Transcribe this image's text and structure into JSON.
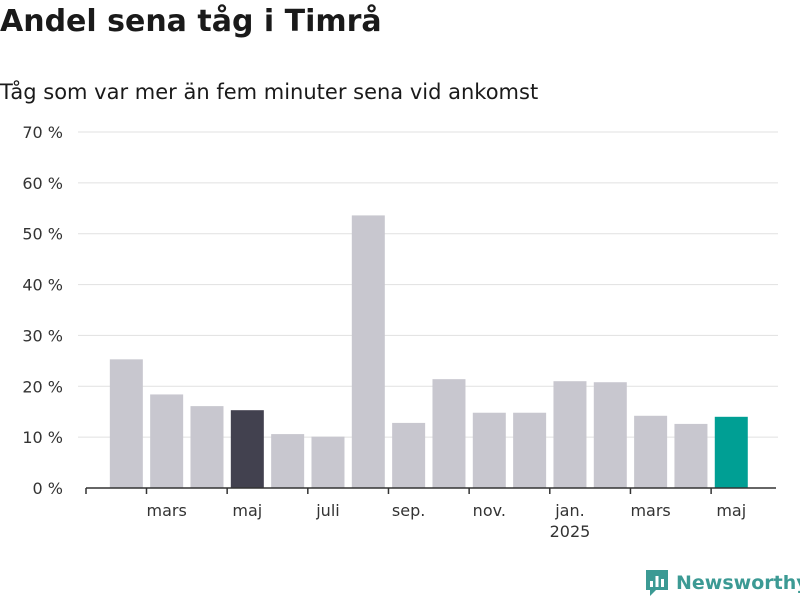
{
  "header": {
    "title": "Andel sena tåg i Timrå",
    "subtitle": "Tåg som var mer än fem minuter sena vid ankomst"
  },
  "brand": {
    "name": "Newsworthy",
    "icon": "newsworthy-logo-icon"
  },
  "colors": {
    "bar_default": "#c8c7cf",
    "bar_highlight_dark": "#42414f",
    "bar_highlight_teal": "#009f94",
    "grid": "#e1e1e1",
    "axis": "#333333",
    "brand": "#3c9a94"
  },
  "chart_data": {
    "type": "bar",
    "x": [
      "2024-02",
      "2024-03",
      "2024-04",
      "2024-05",
      "2024-06",
      "2024-07",
      "2024-08",
      "2024-09",
      "2024-10",
      "2024-11",
      "2024-12",
      "2025-01",
      "2025-02",
      "2025-03",
      "2025-04",
      "2025-05"
    ],
    "values": [
      25.3,
      18.4,
      16.1,
      15.3,
      10.6,
      10.1,
      53.6,
      12.8,
      21.4,
      14.8,
      14.8,
      21.0,
      20.8,
      14.2,
      12.6,
      14.0
    ],
    "highlight": {
      "2024-05": "dark",
      "2025-05": "teal"
    },
    "ylim": [
      0,
      70
    ],
    "yticks": [
      {
        "value": 0,
        "label": "0 %"
      },
      {
        "value": 10,
        "label": "10 %"
      },
      {
        "value": 20,
        "label": "20 %"
      },
      {
        "value": 30,
        "label": "30 %"
      },
      {
        "value": 40,
        "label": "40 %"
      },
      {
        "value": 50,
        "label": "50 %"
      },
      {
        "value": 60,
        "label": "60 %"
      },
      {
        "value": 70,
        "label": "70 %"
      }
    ],
    "xticks": [
      {
        "month": "2024-03",
        "label": "mars"
      },
      {
        "month": "2024-05",
        "label": "maj"
      },
      {
        "month": "2024-07",
        "label": "juli"
      },
      {
        "month": "2024-09",
        "label": "sep."
      },
      {
        "month": "2024-11",
        "label": "nov."
      },
      {
        "month": "2025-01",
        "label": "jan.",
        "sublabel": "2025"
      },
      {
        "month": "2025-03",
        "label": "mars"
      },
      {
        "month": "2025-05",
        "label": "maj"
      }
    ],
    "grid": true,
    "legend": "none"
  }
}
